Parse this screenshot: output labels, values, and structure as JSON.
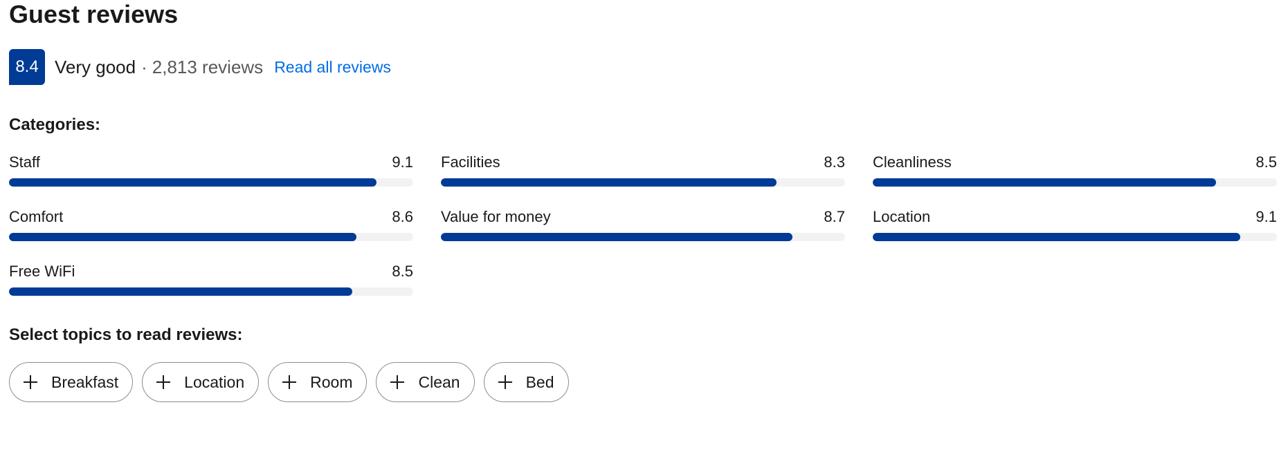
{
  "header": {
    "title": "Guest reviews"
  },
  "summary": {
    "score": "8.4",
    "rating_word": "Very good",
    "separator": "·",
    "review_count": "2,813 reviews",
    "read_all_label": "Read all reviews",
    "badge_color": "#003b95",
    "link_color": "#006ce4"
  },
  "categories": {
    "label": "Categories:",
    "max_score": 10,
    "bar_color": "#003b95",
    "items": [
      {
        "name": "Staff",
        "score": "9.1",
        "fill_fraction": 0.91
      },
      {
        "name": "Facilities",
        "score": "8.3",
        "fill_fraction": 0.83
      },
      {
        "name": "Cleanliness",
        "score": "8.5",
        "fill_fraction": 0.85
      },
      {
        "name": "Comfort",
        "score": "8.6",
        "fill_fraction": 0.86
      },
      {
        "name": "Value for money",
        "score": "8.7",
        "fill_fraction": 0.87
      },
      {
        "name": "Location",
        "score": "9.1",
        "fill_fraction": 0.91
      },
      {
        "name": "Free WiFi",
        "score": "8.5",
        "fill_fraction": 0.85
      }
    ]
  },
  "topics": {
    "label": "Select topics to read reviews:",
    "chips": [
      {
        "label": "Breakfast",
        "icon": "plus-icon"
      },
      {
        "label": "Location",
        "icon": "plus-icon"
      },
      {
        "label": "Room",
        "icon": "plus-icon"
      },
      {
        "label": "Clean",
        "icon": "plus-icon"
      },
      {
        "label": "Bed",
        "icon": "plus-icon"
      }
    ]
  }
}
